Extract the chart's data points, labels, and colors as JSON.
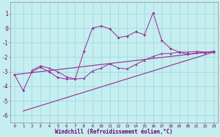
{
  "xlabel": "Windchill (Refroidissement éolien,°C)",
  "background_color": "#c5eef0",
  "grid_color": "#a0d8dc",
  "line_color": "#993399",
  "xlim": [
    -0.5,
    23.5
  ],
  "ylim": [
    -6.5,
    1.8
  ],
  "yticks": [
    1,
    0,
    -1,
    -2,
    -3,
    -4,
    -5,
    -6
  ],
  "xticks": [
    0,
    1,
    2,
    3,
    4,
    5,
    6,
    7,
    8,
    9,
    10,
    11,
    12,
    13,
    14,
    15,
    16,
    17,
    18,
    19,
    20,
    21,
    22,
    23
  ],
  "line1_x": [
    0,
    1,
    2,
    3,
    4,
    5,
    6,
    7,
    8,
    9,
    10,
    11,
    12,
    13,
    14,
    15,
    16,
    17,
    18,
    19,
    20,
    21,
    22,
    23
  ],
  "line1_y": [
    -3.2,
    -4.3,
    -3.0,
    -2.7,
    -3.0,
    -3.4,
    -3.5,
    -3.5,
    -1.6,
    0.0,
    0.15,
    -0.05,
    -0.65,
    -0.55,
    -0.25,
    -0.45,
    1.05,
    -0.85,
    -1.4,
    -1.65,
    -1.8,
    -1.7,
    -1.7,
    -1.6
  ],
  "line2_x": [
    2,
    3,
    4,
    5,
    6,
    7,
    8,
    9,
    10,
    11,
    12,
    13,
    14,
    15,
    16,
    17,
    18,
    19,
    20,
    21,
    22,
    23
  ],
  "line2_y": [
    -2.9,
    -2.6,
    -2.75,
    -3.0,
    -3.35,
    -3.5,
    -3.45,
    -2.95,
    -2.75,
    -2.45,
    -2.75,
    -2.8,
    -2.5,
    -2.2,
    -1.95,
    -1.75,
    -1.75,
    -1.65,
    -1.65,
    -1.6,
    -1.65,
    -1.65
  ],
  "line3_x": [
    0,
    23
  ],
  "line3_y": [
    -3.2,
    -1.6
  ],
  "line4_x": [
    1,
    23
  ],
  "line4_y": [
    -5.7,
    -1.65
  ]
}
